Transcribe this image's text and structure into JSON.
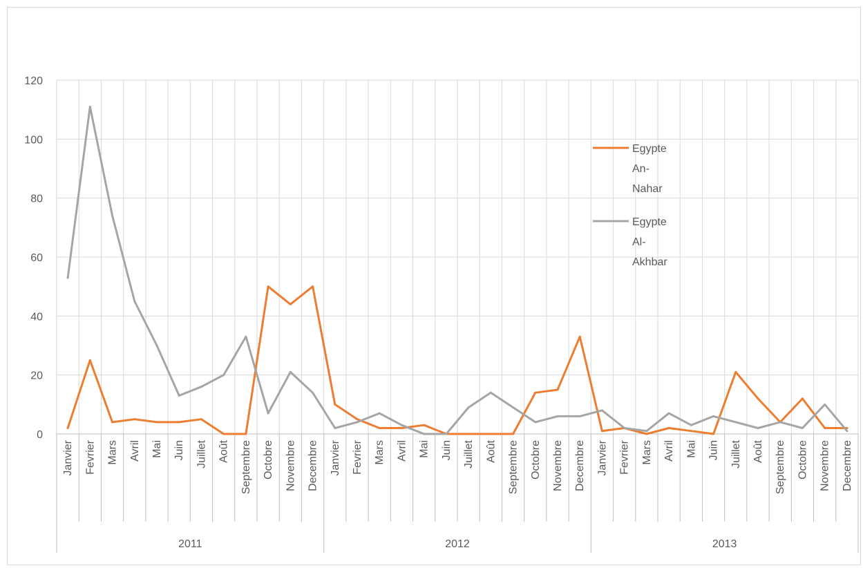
{
  "chart_data": {
    "type": "line",
    "title": "",
    "xlabel": "",
    "ylabel": "",
    "ylim": [
      0,
      120
    ],
    "yticks": [
      0,
      20,
      40,
      60,
      80,
      100,
      120
    ],
    "grid": true,
    "legend_position": "right",
    "groups": [
      {
        "label": "2011",
        "months": [
          "Janvier",
          "Fevrier",
          "Mars",
          "Avril",
          "Mai",
          "Juin",
          "Juillet",
          "Août",
          "Septembre",
          "Octobre",
          "Novembre",
          "Decembre"
        ]
      },
      {
        "label": "2012",
        "months": [
          "Janvier",
          "Fevrier",
          "Mars",
          "Avril",
          "Mai",
          "Juin",
          "Juillet",
          "Août",
          "Septembre",
          "Octobre",
          "Novembre",
          "Decembre"
        ]
      },
      {
        "label": "2013",
        "months": [
          "Janvier",
          "Fevrier",
          "Mars",
          "Avril",
          "Mai",
          "Juin",
          "Juillet",
          "Août",
          "Septembre",
          "Octobre",
          "Novembre",
          "Decembre"
        ]
      }
    ],
    "series": [
      {
        "name": [
          "Egypte",
          "An-",
          "Nahar"
        ],
        "color": "#ed7d31",
        "values": [
          2,
          25,
          4,
          5,
          4,
          4,
          5,
          0,
          0,
          50,
          44,
          50,
          10,
          5,
          2,
          2,
          3,
          0,
          0,
          0,
          0,
          14,
          15,
          33,
          1,
          2,
          0,
          2,
          1,
          0,
          21,
          12,
          4,
          12,
          2,
          2
        ]
      },
      {
        "name": [
          "Egypte",
          "Al-",
          "Akhbar"
        ],
        "color": "#a5a5a5",
        "values": [
          53,
          111,
          74,
          45,
          30,
          13,
          16,
          20,
          33,
          7,
          21,
          14,
          2,
          4,
          7,
          3,
          0,
          0,
          9,
          14,
          9,
          4,
          6,
          6,
          8,
          2,
          1,
          7,
          3,
          6,
          4,
          2,
          4,
          2,
          10,
          1
        ]
      }
    ]
  }
}
